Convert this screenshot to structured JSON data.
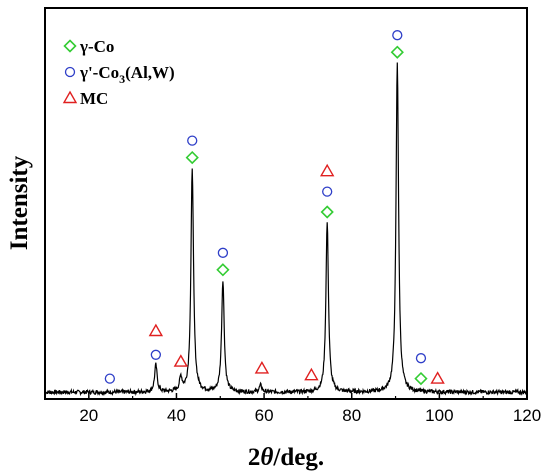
{
  "chart_data": {
    "type": "line",
    "xlabel_main": "2",
    "xlabel_theta": "θ",
    "xlabel_unit": "/deg.",
    "ylabel": "Intensity",
    "xlim": [
      10,
      120
    ],
    "x_ticks": [
      "20",
      "40",
      "60",
      "80",
      "100",
      "120"
    ],
    "y_ticks_labeled": false,
    "grid": false,
    "legend_position": "top-left",
    "legend": [
      {
        "key": "gamma",
        "marker": "diamond",
        "color": "#33cc33",
        "label": "γ-Co"
      },
      {
        "key": "gammaprime",
        "marker": "circle",
        "color": "#2f3fc8",
        "label_pre": "γ'-Co",
        "label_sub": "3",
        "label_post": "(Al,W)"
      },
      {
        "key": "mc",
        "marker": "triangle",
        "color": "#e02020",
        "label": "MC"
      }
    ],
    "series": [
      {
        "peaks": [
          {
            "x": 35.3,
            "y": 0.08
          },
          {
            "x": 41.0,
            "y": 0.04
          },
          {
            "x": 43.6,
            "y": 0.66
          },
          {
            "x": 50.6,
            "y": 0.33
          },
          {
            "x": 59.2,
            "y": 0.02
          },
          {
            "x": 74.4,
            "y": 0.5
          },
          {
            "x": 90.4,
            "y": 0.97
          }
        ],
        "baseline": 0.0,
        "color": "#000000"
      }
    ],
    "markers": [
      {
        "type": "circle",
        "x": 24.8,
        "y": 0.04
      },
      {
        "type": "circle",
        "x": 35.3,
        "y": 0.11
      },
      {
        "type": "triangle",
        "x": 35.3,
        "y": 0.18
      },
      {
        "type": "triangle",
        "x": 41.0,
        "y": 0.09
      },
      {
        "type": "diamond",
        "x": 43.6,
        "y": 0.69
      },
      {
        "type": "circle",
        "x": 43.6,
        "y": 0.74
      },
      {
        "type": "diamond",
        "x": 50.6,
        "y": 0.36
      },
      {
        "type": "circle",
        "x": 50.6,
        "y": 0.41
      },
      {
        "type": "triangle",
        "x": 59.5,
        "y": 0.07
      },
      {
        "type": "triangle",
        "x": 70.8,
        "y": 0.05
      },
      {
        "type": "diamond",
        "x": 74.4,
        "y": 0.53
      },
      {
        "type": "circle",
        "x": 74.4,
        "y": 0.59
      },
      {
        "type": "triangle",
        "x": 74.4,
        "y": 0.65
      },
      {
        "type": "diamond",
        "x": 90.4,
        "y": 1.0
      },
      {
        "type": "circle",
        "x": 90.4,
        "y": 1.05
      },
      {
        "type": "circle",
        "x": 95.8,
        "y": 0.1
      },
      {
        "type": "diamond",
        "x": 95.8,
        "y": 0.04
      },
      {
        "type": "triangle",
        "x": 99.6,
        "y": 0.04
      }
    ],
    "ylim": [
      -0.02,
      1.13
    ]
  }
}
